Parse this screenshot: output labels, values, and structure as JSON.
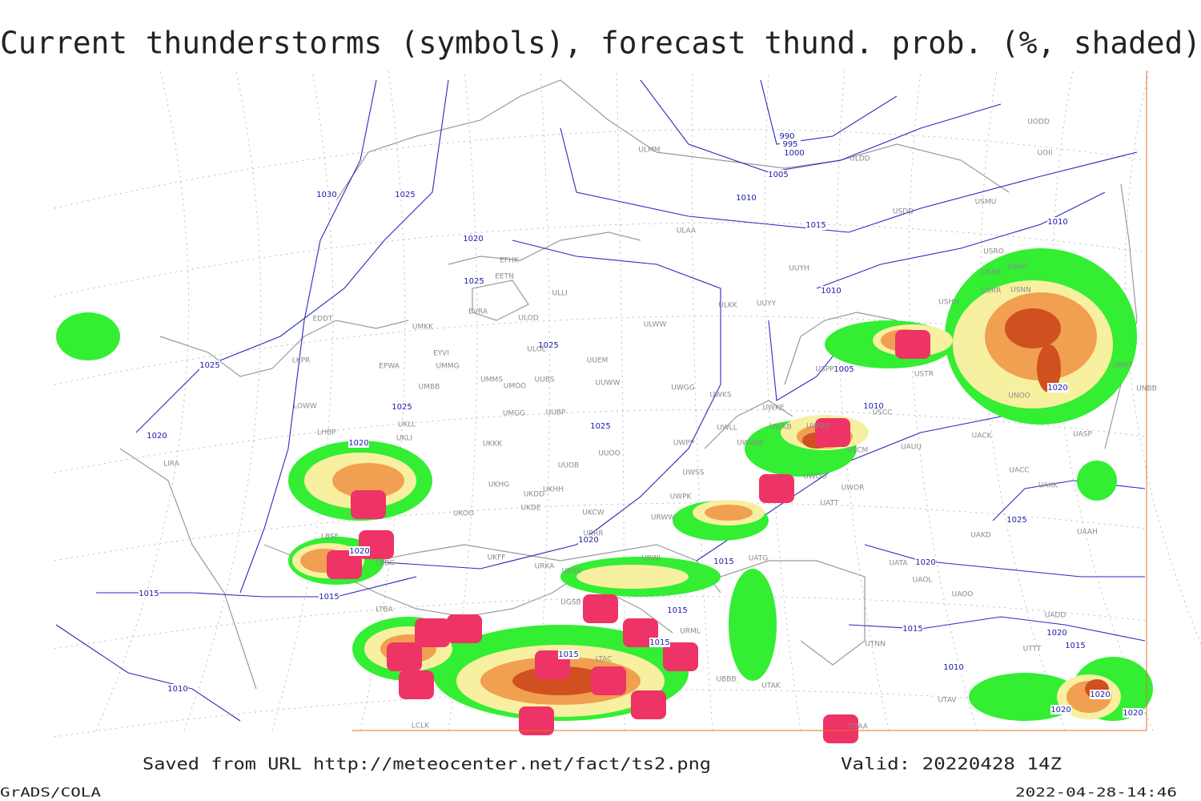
{
  "header": {
    "title": "Current thunderstorms (symbols), forecast thund. prob. (%, shaded)"
  },
  "footer": {
    "saved": "Saved from URL http://meteocenter.net/fact/ts2.png",
    "valid": "Valid: 20220428 14Z",
    "software": "GrADS/COLA",
    "timestamp": "2022-04-28-14:46"
  },
  "map": {
    "isobar_labels": [
      "1030",
      "1025",
      "1020",
      "1025",
      "1025",
      "1025",
      "1020",
      "1020",
      "1020",
      "1015",
      "1015",
      "1010",
      "990",
      "995",
      "1000",
      "1005",
      "1010",
      "1015",
      "1010",
      "1010",
      "1005",
      "1010",
      "1020",
      "1025",
      "1025",
      "1020",
      "1015",
      "1015",
      "1015",
      "1015",
      "1020",
      "1015",
      "1010",
      "1025",
      "1020",
      "1015",
      "1020",
      "1020",
      "1020"
    ],
    "station_labels": [
      "EFHK",
      "EETN",
      "EVRA",
      "ULOD",
      "UMKK",
      "EDDT",
      "EYVI",
      "ULOL",
      "UUEM",
      "LKPR",
      "EPWA",
      "UMMG",
      "UMMS",
      "UMOO",
      "UUBS",
      "UUWW",
      "UMBB",
      "UWGG",
      "UWKS",
      "LOWW",
      "UKLL",
      "UMGG",
      "UUBP",
      "UKLI",
      "LHBP",
      "UKKK",
      "UUOO",
      "UWPP",
      "UWLL",
      "UWKE",
      "UWKB",
      "UWWW",
      "UWOO",
      "USCM",
      "UAUU",
      "UACK",
      "UASP",
      "LIRA",
      "UUOB",
      "UWSS",
      "UKHH",
      "UKHG",
      "UKDD",
      "UKDE",
      "UKOO",
      "UKCW",
      "UWPK",
      "UWOO",
      "UWOR",
      "UATT",
      "UACC",
      "UAKK",
      "URWW",
      "URRR",
      "UAKD",
      "UAAH",
      "LBSF",
      "LBBG",
      "UKFF",
      "URKA",
      "URKK",
      "URWI",
      "UATG",
      "UATA",
      "UAOL",
      "UAOO",
      "UADD",
      "LTBA",
      "UGSB",
      "URML",
      "UTNN",
      "UTTT",
      "LTAC",
      "UBBB",
      "UTAK",
      "UTAV",
      "UTAA",
      "LCLK",
      "ULMM",
      "ULDD",
      "UODD",
      "UOII",
      "USMU",
      "USDD",
      "ULAA",
      "USRO",
      "USRK",
      "USNR",
      "USRR",
      "USNN",
      "USHH",
      "UUYY",
      "ULKK",
      "ULWW",
      "UUYH",
      "ULLI",
      "USPP",
      "UNNT",
      "UNBB",
      "USTR",
      "USCC",
      "UNOO"
    ]
  }
}
